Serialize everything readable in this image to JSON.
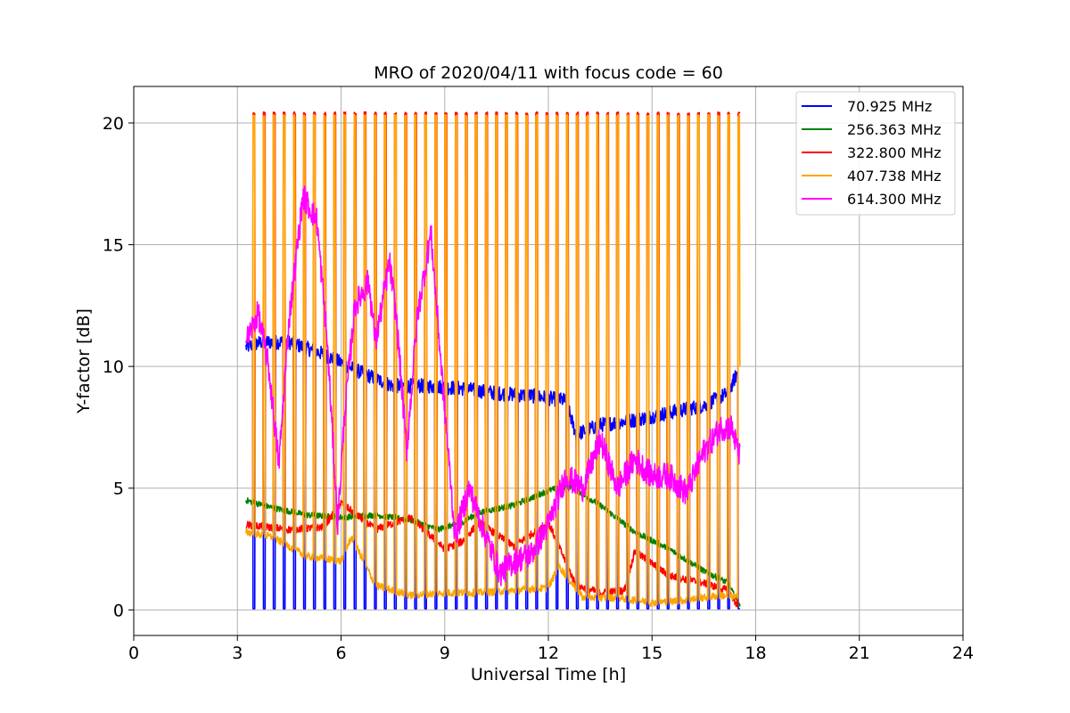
{
  "chart_data": {
    "type": "line",
    "title": "MRO of 2020/04/11 with focus code = 60",
    "xlabel": "Universal Time [h]",
    "ylabel": "Y-factor [dB]",
    "xlim": [
      0,
      24
    ],
    "ylim": [
      -1.05,
      21.5
    ],
    "xticks": [
      0,
      3,
      6,
      9,
      12,
      15,
      18,
      21,
      24
    ],
    "yticks": [
      0,
      5,
      10,
      15,
      20
    ],
    "grid": true,
    "legend_position": "top-right",
    "x_start": 3.25,
    "x_end": 17.55,
    "cal_pulse": {
      "first": 3.45,
      "spacing": 0.2924,
      "count": 49,
      "width": 0.06,
      "peak_dB": 20.4
    },
    "series": [
      {
        "name": " 70.925 MHz",
        "color": "#0000ff",
        "noise": 0.3,
        "pulse_dip": 0.05,
        "profile": [
          [
            3.25,
            10.8
          ],
          [
            3.7,
            11.0
          ],
          [
            4.5,
            11.0
          ],
          [
            5.5,
            10.5
          ],
          [
            6.5,
            9.8
          ],
          [
            7.5,
            9.2
          ],
          [
            8.5,
            9.2
          ],
          [
            9.5,
            9.1
          ],
          [
            10.5,
            8.9
          ],
          [
            11.5,
            8.8
          ],
          [
            12.5,
            8.6
          ],
          [
            12.8,
            7.2
          ],
          [
            13.5,
            7.6
          ],
          [
            14.5,
            7.8
          ],
          [
            15.5,
            8.1
          ],
          [
            16.5,
            8.4
          ],
          [
            17.2,
            8.9
          ],
          [
            17.55,
            10.0
          ]
        ]
      },
      {
        "name": "256.363 MHz",
        "color": "#008000",
        "noise": 0.12,
        "profile": [
          [
            3.25,
            4.5
          ],
          [
            4.0,
            4.2
          ],
          [
            5.0,
            3.9
          ],
          [
            6.0,
            3.8
          ],
          [
            7.0,
            3.9
          ],
          [
            8.0,
            3.7
          ],
          [
            8.8,
            3.3
          ],
          [
            9.5,
            3.6
          ],
          [
            10.0,
            4.0
          ],
          [
            11.0,
            4.3
          ],
          [
            12.0,
            4.9
          ],
          [
            12.6,
            5.1
          ],
          [
            13.5,
            4.3
          ],
          [
            14.5,
            3.2
          ],
          [
            15.5,
            2.5
          ],
          [
            16.5,
            1.6
          ],
          [
            17.2,
            1.1
          ],
          [
            17.55,
            0.1
          ]
        ]
      },
      {
        "name": "322.800 MHz",
        "color": "#ff0000",
        "noise": 0.15,
        "pulse_peak": 20.4,
        "profile": [
          [
            3.25,
            3.5
          ],
          [
            4.5,
            3.3
          ],
          [
            5.5,
            3.4
          ],
          [
            6.0,
            4.4
          ],
          [
            7.0,
            3.3
          ],
          [
            8.0,
            3.8
          ],
          [
            9.0,
            2.5
          ],
          [
            9.5,
            2.8
          ],
          [
            10.0,
            3.6
          ],
          [
            11.0,
            2.6
          ],
          [
            12.0,
            3.6
          ],
          [
            12.8,
            1.0
          ],
          [
            13.5,
            0.7
          ],
          [
            14.2,
            0.8
          ],
          [
            14.5,
            2.4
          ],
          [
            15.5,
            1.4
          ],
          [
            16.5,
            1.1
          ],
          [
            17.2,
            0.8
          ],
          [
            17.55,
            0.0
          ]
        ]
      },
      {
        "name": "407.738 MHz",
        "color": "#ffa500",
        "noise": 0.15,
        "pulse_peak": 20.3,
        "plateau": 10.0,
        "profile": [
          [
            3.25,
            3.2
          ],
          [
            4.0,
            3.0
          ],
          [
            5.0,
            2.2
          ],
          [
            6.0,
            2.0
          ],
          [
            6.3,
            3.0
          ],
          [
            7.0,
            1.0
          ],
          [
            8.0,
            0.6
          ],
          [
            9.0,
            0.7
          ],
          [
            10.0,
            0.7
          ],
          [
            11.0,
            0.8
          ],
          [
            12.0,
            0.9
          ],
          [
            12.3,
            1.8
          ],
          [
            13.0,
            0.5
          ],
          [
            14.0,
            0.5
          ],
          [
            15.0,
            0.3
          ],
          [
            16.0,
            0.4
          ],
          [
            17.0,
            0.6
          ],
          [
            17.55,
            0.5
          ]
        ]
      },
      {
        "name": "614.300 MHz",
        "color": "#ff00ff",
        "noise": 0.55,
        "profile": [
          [
            3.25,
            11.0
          ],
          [
            3.6,
            12.2
          ],
          [
            3.9,
            10.0
          ],
          [
            4.2,
            6.0
          ],
          [
            4.5,
            12.0
          ],
          [
            4.9,
            17.0
          ],
          [
            5.3,
            16.0
          ],
          [
            5.6,
            11.0
          ],
          [
            5.9,
            3.5
          ],
          [
            6.1,
            8.0
          ],
          [
            6.4,
            12.5
          ],
          [
            6.8,
            13.5
          ],
          [
            7.0,
            11.0
          ],
          [
            7.4,
            14.3
          ],
          [
            7.6,
            12.0
          ],
          [
            7.9,
            6.5
          ],
          [
            8.2,
            12.0
          ],
          [
            8.6,
            15.5
          ],
          [
            8.9,
            10.0
          ],
          [
            9.3,
            3.0
          ],
          [
            9.7,
            5.0
          ],
          [
            10.2,
            3.0
          ],
          [
            10.6,
            1.5
          ],
          [
            11.0,
            2.0
          ],
          [
            11.5,
            2.3
          ],
          [
            12.0,
            3.5
          ],
          [
            12.5,
            5.5
          ],
          [
            13.0,
            5.0
          ],
          [
            13.5,
            7.0
          ],
          [
            14.0,
            5.0
          ],
          [
            14.5,
            6.2
          ],
          [
            15.0,
            5.5
          ],
          [
            15.5,
            5.5
          ],
          [
            16.0,
            4.8
          ],
          [
            16.5,
            6.5
          ],
          [
            17.0,
            7.5
          ],
          [
            17.3,
            7.5
          ],
          [
            17.55,
            6.2
          ]
        ]
      }
    ]
  }
}
